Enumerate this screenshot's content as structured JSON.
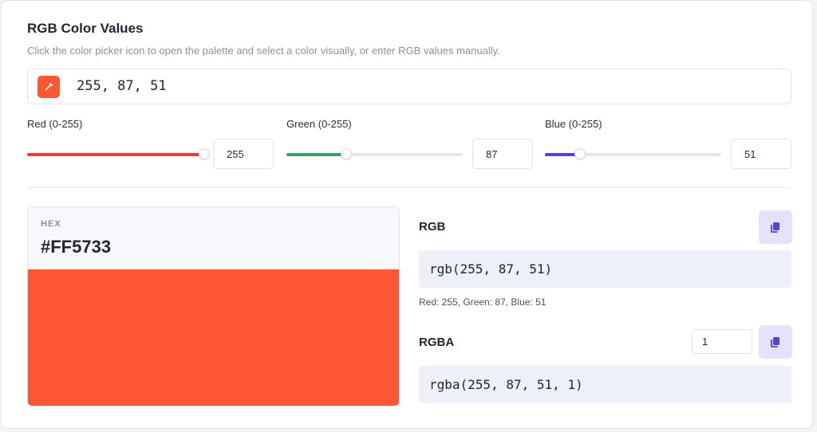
{
  "header": {
    "title": "RGB Color Values",
    "subtitle": "Click the color picker icon to open the palette and select a color visually, or enter RGB values manually."
  },
  "picker": {
    "icon": "eyedropper-icon",
    "value": "255, 87, 51"
  },
  "sliders": [
    {
      "label": "Red (0-255)",
      "value": "255",
      "fraction": 1.0,
      "color": "#e53e3e"
    },
    {
      "label": "Green (0-255)",
      "value": "87",
      "fraction": 0.341,
      "color": "#38a169"
    },
    {
      "label": "Blue (0-255)",
      "value": "51",
      "fraction": 0.2,
      "color": "#5a3fd8"
    }
  ],
  "hex": {
    "caption": "HEX",
    "value": "#FF5733",
    "swatch_color": "#FF5733"
  },
  "rgb": {
    "label": "RGB",
    "code": "rgb(255, 87, 51)",
    "hint": "Red: 255, Green: 87, Blue: 51",
    "copy_icon": "copy-icon"
  },
  "rgba": {
    "label": "RGBA",
    "alpha": "1",
    "code": "rgba(255, 87, 51, 1)",
    "copy_icon": "copy-icon"
  },
  "colors": {
    "accent": "#FF5733",
    "copy_button_bg": "#e4e2f8",
    "copy_icon": "#5b3fd1"
  }
}
